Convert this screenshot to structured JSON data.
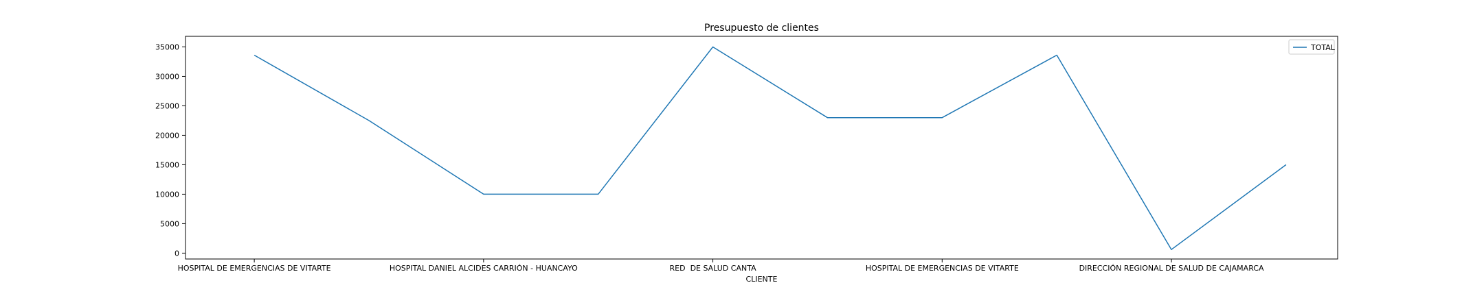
{
  "chart_data": {
    "type": "line",
    "title": "Presupuesto de clientes",
    "xlabel": "CLIENTE",
    "ylabel": "",
    "x_tick_labels": [
      "HOSPITAL DE EMERGENCIAS DE VITARTE",
      "HOSPITAL DANIEL ALCIDES CARRIÓN - HUANCAYO",
      "RED  DE SALUD CANTA",
      "HOSPITAL DE EMERGENCIAS DE VITARTE",
      "DIRECCIÓN REGIONAL DE SALUD DE CAJAMARCA"
    ],
    "x_tick_positions": [
      0,
      2,
      4,
      6,
      8
    ],
    "xlim": [
      -0.6,
      9.45
    ],
    "ylim": [
      -1000,
      36800
    ],
    "y_ticks": [
      0,
      5000,
      10000,
      15000,
      20000,
      25000,
      30000,
      35000
    ],
    "grid": false,
    "legend_position": "upper-right",
    "series": [
      {
        "name": "TOTAL",
        "color": "#1f77b4",
        "x": [
          0,
          1,
          2,
          3,
          4,
          5,
          6,
          7,
          8,
          9
        ],
        "values": [
          33600,
          22500,
          10000,
          10000,
          35000,
          23000,
          23000,
          33600,
          600,
          15000
        ]
      }
    ]
  }
}
